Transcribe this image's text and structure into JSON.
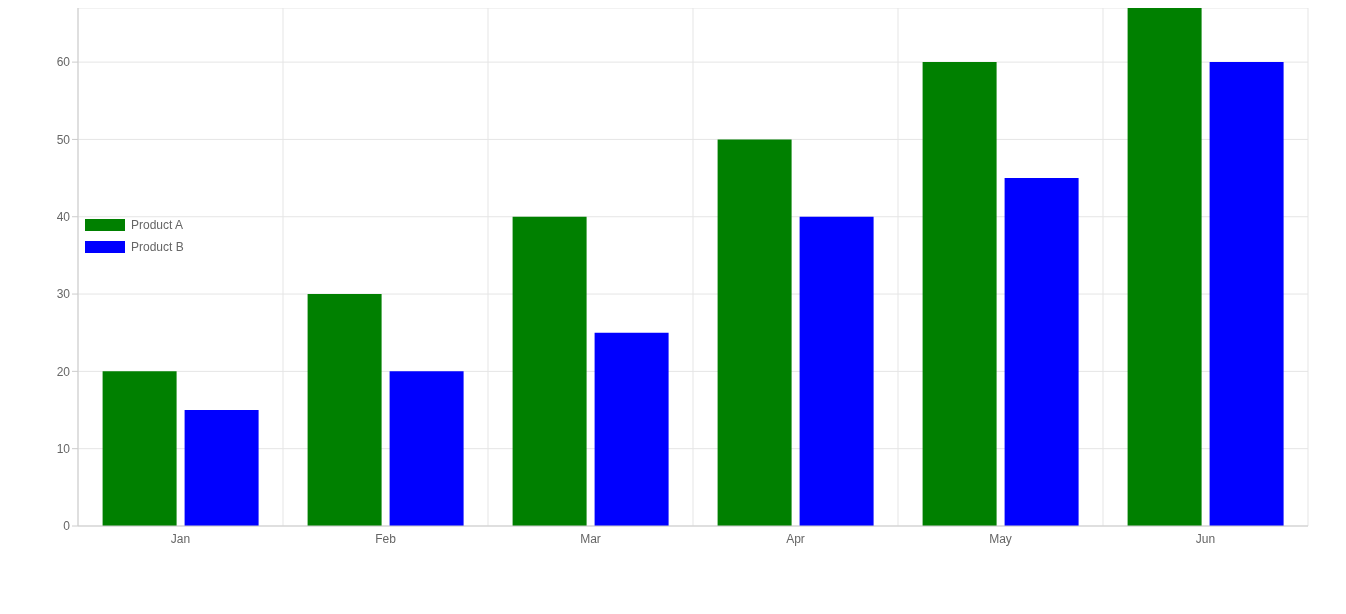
{
  "chart_data": {
    "type": "bar",
    "categories": [
      "Jan",
      "Feb",
      "Mar",
      "Apr",
      "May",
      "Jun"
    ],
    "series": [
      {
        "name": "Product A",
        "color": "#008000",
        "values": [
          20,
          30,
          40,
          50,
          60,
          67
        ]
      },
      {
        "name": "Product B",
        "color": "#0000ff",
        "values": [
          15,
          20,
          25,
          40,
          45,
          60
        ]
      }
    ],
    "ylim": [
      0,
      67
    ],
    "yticks": [
      0,
      10,
      20,
      30,
      40,
      50,
      60
    ],
    "grid": true,
    "legend": "left"
  }
}
